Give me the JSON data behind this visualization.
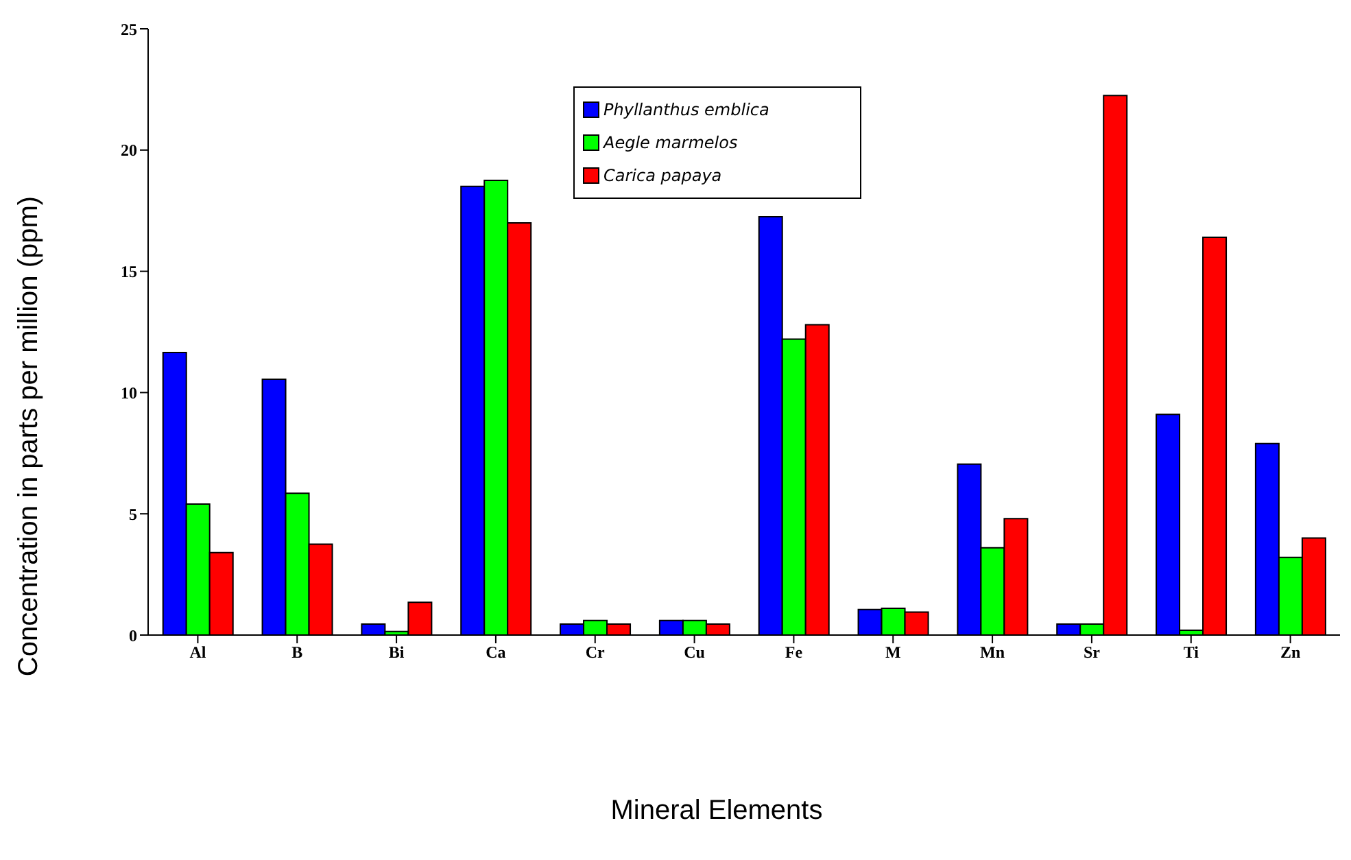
{
  "chart_data": {
    "type": "bar",
    "xlabel": "Mineral Elements",
    "ylabel": "Concentration in parts per million (ppm)",
    "categories": [
      "Al",
      "B",
      "Bi",
      "Ca",
      "Cr",
      "Cu",
      "Fe",
      "M",
      "Mn",
      "Sr",
      "Ti",
      "Zn"
    ],
    "series": [
      {
        "name": "Phyllanthus emblica",
        "color": "#0000ff",
        "values": [
          11.65,
          10.55,
          0.45,
          18.5,
          0.45,
          0.6,
          17.25,
          1.05,
          7.05,
          0.45,
          9.1,
          7.9
        ]
      },
      {
        "name": "Aegle marmelos",
        "color": "#00ff00",
        "values": [
          5.4,
          5.85,
          0.15,
          18.75,
          0.6,
          0.6,
          12.2,
          1.1,
          3.6,
          0.45,
          0.2,
          3.2
        ]
      },
      {
        "name": "Carica papaya",
        "color": "#ff0000",
        "values": [
          3.4,
          3.75,
          1.35,
          17.0,
          0.45,
          0.45,
          12.8,
          0.95,
          4.8,
          22.25,
          16.4,
          4.0
        ]
      }
    ],
    "ylim": [
      0,
      25
    ],
    "yticks": [
      0,
      5,
      10,
      15,
      20,
      25
    ],
    "grid": false,
    "legend": "top"
  }
}
